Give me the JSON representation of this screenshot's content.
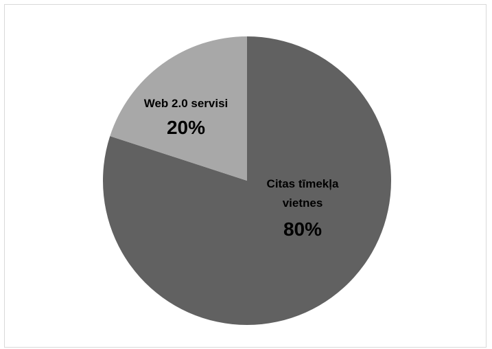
{
  "chart_data": {
    "type": "pie",
    "title": "",
    "start_angle_deg": 0,
    "direction": "clockwise",
    "legend": "none",
    "slices": [
      {
        "category_lines": [
          "Citas tīmekļa",
          "vietnes"
        ],
        "value": 80,
        "percent_label": "80%",
        "color": "#616161"
      },
      {
        "category_lines": [
          "Web 2.0 servisi"
        ],
        "value": 20,
        "percent_label": "20%",
        "color": "#a8a8a8"
      }
    ]
  }
}
